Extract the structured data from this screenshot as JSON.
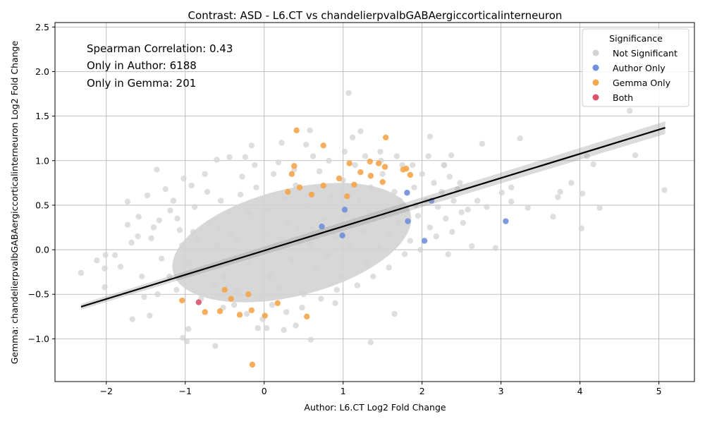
{
  "chart_data": {
    "type": "scatter",
    "title": "Contrast: ASD - L6.CT vs chandelierpvalbGABAergiccorticalinterneuron",
    "xlabel": "Author: L6.CT Log2 Fold Change",
    "ylabel": "Gemma: chandelierpvalbGABAergiccorticalinterneuron Log2 Fold Change",
    "xlim": [
      -2.65,
      5.45
    ],
    "ylim": [
      -1.48,
      2.55
    ],
    "x_ticks": [
      -2,
      -1,
      0,
      1,
      2,
      3,
      4,
      5
    ],
    "x_tick_labels": [
      "−2",
      "−1",
      "0",
      "1",
      "2",
      "3",
      "4",
      "5"
    ],
    "y_ticks": [
      -1.0,
      -0.5,
      0.0,
      0.5,
      1.0,
      1.5,
      2.0,
      2.5
    ],
    "y_tick_labels": [
      "−1.0",
      "−0.5",
      "0.0",
      "0.5",
      "1.0",
      "1.5",
      "2.0",
      "2.5"
    ],
    "grid": true,
    "annotations": [
      "Spearman Correlation: 0.43",
      "Only in Author: 6188",
      "Only in Gemma: 201"
    ],
    "legend": {
      "title": "Significance",
      "position": "top-right",
      "entries": [
        {
          "name": "Not Significant",
          "color": "#d3d3d3"
        },
        {
          "name": "Author Only",
          "color": "#6f8fdc"
        },
        {
          "name": "Gemma Only",
          "color": "#f5a54a"
        },
        {
          "name": "Both",
          "color": "#d9546c"
        }
      ]
    },
    "regression_line": {
      "x": [
        -2.32,
        5.08
      ],
      "y": [
        -0.64,
        1.37
      ],
      "color": "#000000"
    },
    "series": [
      {
        "name": "Not Significant",
        "color": "#d3d3d3",
        "points": [
          [
            -2.32,
            -0.26
          ],
          [
            -2.12,
            -0.12
          ],
          [
            -2.01,
            -0.06
          ],
          [
            -2.02,
            -0.21
          ],
          [
            -2.02,
            -0.42
          ],
          [
            -1.89,
            -0.06
          ],
          [
            -1.82,
            -0.19
          ],
          [
            -1.73,
            0.54
          ],
          [
            -1.73,
            0.28
          ],
          [
            -1.68,
            0.08
          ],
          [
            -1.67,
            -0.78
          ],
          [
            -1.59,
            0.37
          ],
          [
            -1.52,
            -0.53
          ],
          [
            -1.48,
            0.61
          ],
          [
            -1.45,
            -0.74
          ],
          [
            -1.43,
            0.13
          ],
          [
            -1.36,
            0.9
          ],
          [
            -1.33,
            0.33
          ],
          [
            -1.25,
            0.68
          ],
          [
            -1.19,
            0.44
          ],
          [
            -1.11,
            -0.45
          ],
          [
            -1.07,
            0.22
          ],
          [
            -1.03,
            -0.99
          ],
          [
            -1.02,
            0.8
          ],
          [
            -0.98,
            -1.03
          ],
          [
            -0.96,
            -0.89
          ],
          [
            -0.92,
            0.72
          ],
          [
            -0.75,
            0.85
          ],
          [
            -0.6,
            1.01
          ],
          [
            -0.62,
            -1.08
          ],
          [
            -0.44,
            1.04
          ],
          [
            -0.24,
            1.04
          ],
          [
            -0.16,
            1.17
          ],
          [
            -0.08,
            -0.88
          ],
          [
            0.03,
            -0.88
          ],
          [
            0.22,
            1.2
          ],
          [
            0.25,
            -0.9
          ],
          [
            0.4,
            -0.85
          ],
          [
            0.53,
            1.18
          ],
          [
            0.58,
            1.34
          ],
          [
            0.59,
            -1.01
          ],
          [
            0.9,
            -0.6
          ],
          [
            1.07,
            1.76
          ],
          [
            1.12,
            1.26
          ],
          [
            1.22,
            1.33
          ],
          [
            1.35,
            -1.04
          ],
          [
            1.47,
            1.1
          ],
          [
            1.65,
            -0.72
          ],
          [
            2.1,
            1.27
          ],
          [
            2.28,
            0.95
          ],
          [
            2.33,
            -0.05
          ],
          [
            2.37,
            1.06
          ],
          [
            2.52,
            0.3
          ],
          [
            2.63,
            0.04
          ],
          [
            2.76,
            1.19
          ],
          [
            2.93,
            0.02
          ],
          [
            3.01,
            0.64
          ],
          [
            3.13,
            0.7
          ],
          [
            3.13,
            0.54
          ],
          [
            3.24,
            1.25
          ],
          [
            3.34,
            0.47
          ],
          [
            3.66,
            0.37
          ],
          [
            3.72,
            0.59
          ],
          [
            3.75,
            0.65
          ],
          [
            3.89,
            0.75
          ],
          [
            4.02,
            0.24
          ],
          [
            4.03,
            0.63
          ],
          [
            4.09,
            1.05
          ],
          [
            4.17,
            0.96
          ],
          [
            4.25,
            0.47
          ],
          [
            4.63,
            1.56
          ],
          [
            4.7,
            1.06
          ],
          [
            5.07,
            0.67
          ],
          [
            -1.04,
            0.05
          ],
          [
            -0.84,
            0.12
          ],
          [
            -0.7,
            0.3
          ],
          [
            -0.55,
            0.55
          ],
          [
            -0.5,
            -0.3
          ],
          [
            -0.4,
            0.18
          ],
          [
            -0.33,
            -0.45
          ],
          [
            -0.3,
            0.62
          ],
          [
            -0.2,
            0.4
          ],
          [
            -0.18,
            -0.15
          ],
          [
            -0.1,
            0.7
          ],
          [
            -0.05,
            -0.55
          ],
          [
            0.0,
            0.2
          ],
          [
            0.05,
            0.45
          ],
          [
            0.08,
            -0.3
          ],
          [
            0.12,
            0.85
          ],
          [
            0.15,
            0.05
          ],
          [
            0.2,
            -0.42
          ],
          [
            0.25,
            0.58
          ],
          [
            0.3,
            0.3
          ],
          [
            0.35,
            -0.12
          ],
          [
            0.4,
            0.72
          ],
          [
            0.45,
            0.1
          ],
          [
            0.5,
            -0.5
          ],
          [
            0.55,
            0.48
          ],
          [
            0.6,
            0.22
          ],
          [
            0.65,
            -0.2
          ],
          [
            0.7,
            0.88
          ],
          [
            0.75,
            0.35
          ],
          [
            0.8,
            -0.05
          ],
          [
            0.85,
            0.6
          ],
          [
            0.9,
            0.15
          ],
          [
            0.95,
            -0.3
          ],
          [
            1.0,
            0.78
          ],
          [
            1.05,
            0.4
          ],
          [
            1.1,
            0.05
          ],
          [
            1.15,
            0.95
          ],
          [
            1.2,
            0.55
          ],
          [
            1.25,
            0.2
          ],
          [
            1.3,
            -0.15
          ],
          [
            1.35,
            0.7
          ],
          [
            1.4,
            0.35
          ],
          [
            1.45,
            0.02
          ],
          [
            1.5,
            0.85
          ],
          [
            1.55,
            0.5
          ],
          [
            1.6,
            0.18
          ],
          [
            1.65,
            0.65
          ],
          [
            1.7,
            0.3
          ],
          [
            1.75,
            0.95
          ],
          [
            1.8,
            0.45
          ],
          [
            1.85,
            0.1
          ],
          [
            1.9,
            0.7
          ],
          [
            1.95,
            0.38
          ],
          [
            2.0,
            0.85
          ],
          [
            2.05,
            0.55
          ],
          [
            2.1,
            0.25
          ],
          [
            2.15,
            0.75
          ],
          [
            2.2,
            0.48
          ],
          [
            2.25,
            0.65
          ],
          [
            2.3,
            0.35
          ],
          [
            2.35,
            0.82
          ],
          [
            2.4,
            0.55
          ],
          [
            2.45,
            0.68
          ],
          [
            2.5,
            0.42
          ],
          [
            -1.2,
            -0.3
          ],
          [
            -1.1,
            0.35
          ],
          [
            -0.95,
            -0.15
          ],
          [
            -0.88,
            0.48
          ],
          [
            -0.8,
            -0.55
          ],
          [
            -0.72,
            0.65
          ],
          [
            -0.65,
            -0.4
          ],
          [
            -0.58,
            0.25
          ],
          [
            -0.52,
            -0.65
          ],
          [
            -0.45,
            0.42
          ],
          [
            -0.38,
            -0.62
          ],
          [
            -0.28,
            0.82
          ],
          [
            -0.22,
            -0.72
          ],
          [
            -0.12,
            0.95
          ],
          [
            -0.02,
            -0.78
          ],
          [
            0.1,
            -0.62
          ],
          [
            0.18,
            0.98
          ],
          [
            0.28,
            -0.7
          ],
          [
            0.38,
            0.9
          ],
          [
            0.48,
            -0.65
          ],
          [
            0.62,
            1.05
          ],
          [
            0.72,
            -0.55
          ],
          [
            0.82,
            1.0
          ],
          [
            0.92,
            -0.45
          ],
          [
            1.02,
            1.1
          ],
          [
            1.18,
            -0.4
          ],
          [
            1.28,
            1.05
          ],
          [
            1.38,
            -0.3
          ],
          [
            1.48,
            1.0
          ],
          [
            1.58,
            -0.2
          ],
          [
            1.68,
            1.05
          ],
          [
            1.78,
            -0.05
          ],
          [
            1.88,
            0.95
          ],
          [
            1.98,
            0.0
          ],
          [
            2.08,
            1.05
          ],
          [
            2.18,
            0.15
          ],
          [
            2.28,
            0.95
          ],
          [
            2.38,
            0.2
          ],
          [
            2.48,
            0.75
          ],
          [
            2.58,
            0.45
          ],
          [
            2.7,
            0.55
          ],
          [
            2.82,
            0.48
          ],
          [
            -1.3,
            -0.1
          ],
          [
            -1.4,
            0.25
          ],
          [
            -1.55,
            -0.3
          ],
          [
            -1.6,
            0.15
          ],
          [
            -1.35,
            -0.5
          ],
          [
            -1.15,
            0.55
          ],
          [
            -0.9,
            0.2
          ],
          [
            -0.6,
            0.05
          ],
          [
            -0.35,
            0.1
          ],
          [
            -0.15,
            -0.05
          ],
          [
            0.02,
            0.0
          ],
          [
            0.22,
            0.12
          ],
          [
            0.42,
            0.25
          ],
          [
            0.58,
            0.08
          ],
          [
            0.78,
            0.22
          ],
          [
            0.98,
            0.3
          ],
          [
            1.12,
            0.28
          ],
          [
            1.32,
            0.42
          ],
          [
            1.52,
            0.38
          ],
          [
            1.72,
            0.55
          ],
          [
            1.92,
            0.5
          ]
        ]
      },
      {
        "name": "Gemma Only",
        "color": "#f5a54a",
        "points": [
          [
            -1.04,
            -0.57
          ],
          [
            -0.75,
            -0.7
          ],
          [
            -0.56,
            -0.69
          ],
          [
            -0.42,
            -0.55
          ],
          [
            -0.31,
            -0.73
          ],
          [
            -0.16,
            -0.68
          ],
          [
            -0.15,
            -1.29
          ],
          [
            0.01,
            -0.74
          ],
          [
            0.17,
            -0.6
          ],
          [
            0.41,
            1.34
          ],
          [
            0.54,
            -0.75
          ],
          [
            0.75,
            1.17
          ],
          [
            0.35,
            0.85
          ],
          [
            0.38,
            0.94
          ],
          [
            0.6,
            0.62
          ],
          [
            0.75,
            0.72
          ],
          [
            1.08,
            0.97
          ],
          [
            1.14,
            0.73
          ],
          [
            1.22,
            0.87
          ],
          [
            1.34,
            0.99
          ],
          [
            1.35,
            0.83
          ],
          [
            1.45,
            0.97
          ],
          [
            1.5,
            0.76
          ],
          [
            1.53,
            0.93
          ],
          [
            1.54,
            1.26
          ],
          [
            1.76,
            0.9
          ],
          [
            1.8,
            0.91
          ],
          [
            1.85,
            0.84
          ],
          [
            -0.5,
            -0.45
          ],
          [
            -0.2,
            -0.5
          ],
          [
            0.3,
            0.65
          ],
          [
            0.95,
            0.8
          ],
          [
            0.45,
            0.7
          ],
          [
            1.05,
            0.6
          ]
        ]
      },
      {
        "name": "Author Only",
        "color": "#6f8fdc",
        "points": [
          [
            0.99,
            0.16
          ],
          [
            1.02,
            0.45
          ],
          [
            1.81,
            0.64
          ],
          [
            1.82,
            0.32
          ],
          [
            2.03,
            0.1
          ],
          [
            2.12,
            0.55
          ],
          [
            3.06,
            0.32
          ],
          [
            0.73,
            0.26
          ]
        ]
      },
      {
        "name": "Both",
        "color": "#d9546c",
        "points": [
          [
            -0.83,
            -0.59
          ]
        ]
      }
    ]
  }
}
